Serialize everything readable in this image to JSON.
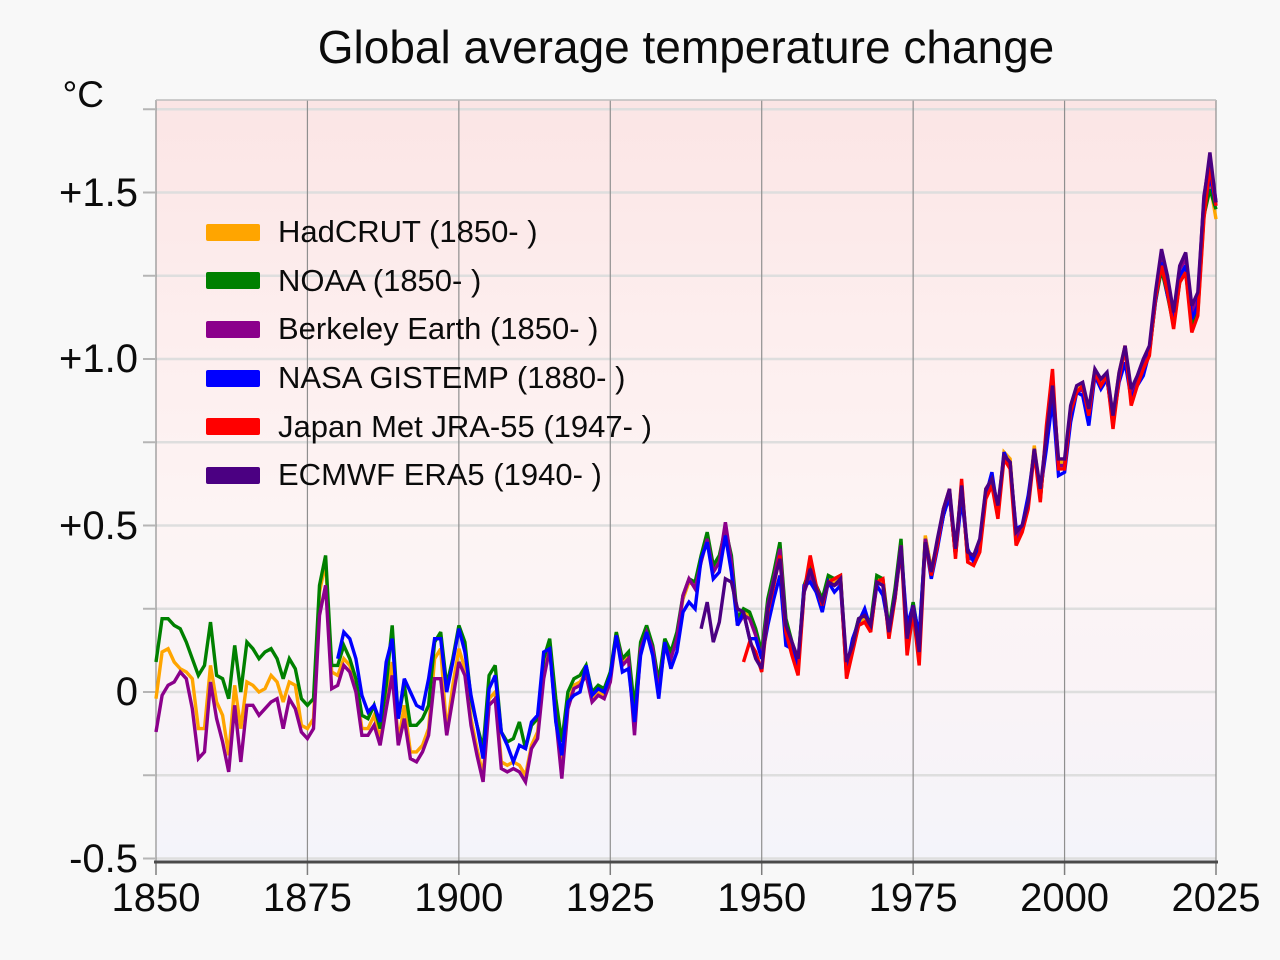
{
  "title": "Global average temperature change",
  "unit_label": "°C",
  "colors": {
    "page_bg": "#f8f8f8",
    "grid_horizontal": "#dedede",
    "grid_vertical": "#8f8f8f",
    "axis_bottom": "#4a4a4a",
    "tick_x": "#7d7d7d",
    "tick_y": "#b5b5b5",
    "border_top": "#bdbdbd",
    "text": "#0b0b0b",
    "plot_gradient": [
      "#fbe5e5",
      "#fdeeee",
      "#fdf4f4",
      "#f9f3f7",
      "#f4f4fa"
    ]
  },
  "chart_data": {
    "type": "line",
    "title": "Global average temperature change",
    "xlabel": "",
    "ylabel": "°C",
    "x_range": [
      1850,
      2025
    ],
    "y_range": [
      -0.5105,
      1.7778
    ],
    "grid": true,
    "legend_position": "upper-left-inside",
    "x_ticks": [
      1850,
      1875,
      1900,
      1925,
      1950,
      1975,
      2000,
      2025
    ],
    "y_ticks": [
      {
        "value": -0.5,
        "label": "-0.5"
      },
      {
        "value": 0,
        "label": "0"
      },
      {
        "value": 0.5,
        "label": "+0.5"
      },
      {
        "value": 1.0,
        "label": "+1.0"
      },
      {
        "value": 1.5,
        "label": "+1.5"
      }
    ],
    "y_minor_step": 0.25,
    "x_minor_step": 25,
    "series": [
      {
        "name": "hadcrut",
        "label": "HadCRUT (1850- )",
        "color": "#FFA500",
        "start_year": 1850,
        "values": [
          -0.02,
          0.12,
          0.13,
          0.09,
          0.07,
          0.06,
          0.04,
          -0.11,
          -0.11,
          0.08,
          -0.03,
          -0.07,
          -0.19,
          0.02,
          -0.11,
          0.03,
          0.02,
          0.0,
          0.01,
          0.05,
          0.03,
          -0.03,
          0.03,
          0.02,
          -0.1,
          -0.11,
          -0.08,
          0.3,
          0.39,
          0.06,
          0.05,
          0.1,
          0.08,
          0.02,
          -0.11,
          -0.11,
          -0.07,
          -0.14,
          -0.03,
          0.09,
          -0.15,
          -0.04,
          -0.18,
          -0.18,
          -0.16,
          -0.11,
          0.1,
          0.13,
          -0.12,
          0.02,
          0.13,
          0.07,
          -0.08,
          -0.17,
          -0.25,
          -0.02,
          0.0,
          -0.21,
          -0.22,
          -0.21,
          -0.22,
          -0.25,
          -0.16,
          -0.12,
          0.05,
          0.15,
          -0.06,
          -0.25,
          -0.04,
          0.02,
          0.03,
          0.06,
          -0.02,
          0.0,
          -0.01,
          0.04,
          0.18,
          0.09,
          0.11,
          -0.07,
          0.14,
          0.19,
          0.13,
          0.01,
          0.15,
          0.11,
          0.17,
          0.28,
          0.33,
          0.32,
          0.4,
          0.47,
          0.37,
          0.4,
          0.47,
          0.4,
          0.21,
          0.24,
          0.23,
          0.18,
          0.11,
          0.27,
          0.35,
          0.44,
          0.21,
          0.14,
          0.08,
          0.31,
          0.36,
          0.31,
          0.27,
          0.34,
          0.33,
          0.34,
          0.06,
          0.14,
          0.21,
          0.22,
          0.2,
          0.34,
          0.33,
          0.18,
          0.3,
          0.45,
          0.15,
          0.26,
          0.15,
          0.47,
          0.37,
          0.45,
          0.54,
          0.6,
          0.42,
          0.63,
          0.41,
          0.41,
          0.45,
          0.61,
          0.63,
          0.55,
          0.72,
          0.7,
          0.47,
          0.5,
          0.57,
          0.74,
          0.59,
          0.78,
          0.94,
          0.69,
          0.69,
          0.85,
          0.91,
          0.92,
          0.84,
          0.97,
          0.93,
          0.95,
          0.83,
          0.96,
          1.04,
          0.9,
          0.94,
          0.99,
          1.03,
          1.19,
          1.29,
          1.21,
          1.12,
          1.25,
          1.28,
          1.12,
          1.16,
          1.45,
          1.53,
          1.42
        ]
      },
      {
        "name": "noaa",
        "label": "NOAA (1850- )",
        "color": "#008000",
        "start_year": 1850,
        "values": [
          0.09,
          0.22,
          0.22,
          0.2,
          0.19,
          0.15,
          0.1,
          0.05,
          0.08,
          0.21,
          0.05,
          0.04,
          -0.02,
          0.14,
          0.0,
          0.15,
          0.13,
          0.1,
          0.12,
          0.13,
          0.1,
          0.04,
          0.1,
          0.07,
          -0.02,
          -0.04,
          -0.02,
          0.32,
          0.41,
          0.08,
          0.08,
          0.14,
          0.1,
          0.04,
          -0.07,
          -0.08,
          -0.04,
          -0.11,
          0.02,
          0.2,
          -0.08,
          0.02,
          -0.1,
          -0.1,
          -0.08,
          -0.04,
          0.15,
          0.18,
          0.02,
          0.1,
          0.2,
          0.15,
          -0.02,
          -0.1,
          -0.17,
          0.05,
          0.08,
          -0.12,
          -0.15,
          -0.14,
          -0.09,
          -0.17,
          -0.1,
          -0.08,
          0.1,
          0.16,
          -0.02,
          -0.15,
          0.0,
          0.04,
          0.05,
          0.08,
          0.0,
          0.02,
          0.01,
          0.06,
          0.18,
          0.1,
          0.12,
          -0.05,
          0.15,
          0.2,
          0.14,
          0.03,
          0.16,
          0.12,
          0.18,
          0.29,
          0.34,
          0.33,
          0.41,
          0.48,
          0.38,
          0.41,
          0.49,
          0.41,
          0.22,
          0.25,
          0.24,
          0.19,
          0.12,
          0.28,
          0.36,
          0.45,
          0.22,
          0.15,
          0.09,
          0.32,
          0.37,
          0.32,
          0.28,
          0.35,
          0.34,
          0.35,
          0.07,
          0.15,
          0.22,
          0.23,
          0.21,
          0.35,
          0.34,
          0.19,
          0.31,
          0.46,
          0.16,
          0.27,
          0.16,
          0.46,
          0.36,
          0.44,
          0.53,
          0.59,
          0.41,
          0.62,
          0.4,
          0.4,
          0.44,
          0.6,
          0.62,
          0.54,
          0.71,
          0.69,
          0.46,
          0.49,
          0.56,
          0.73,
          0.58,
          0.77,
          0.92,
          0.68,
          0.68,
          0.84,
          0.9,
          0.91,
          0.83,
          0.96,
          0.92,
          0.94,
          0.82,
          0.95,
          1.03,
          0.89,
          0.93,
          0.98,
          1.02,
          1.17,
          1.27,
          1.19,
          1.1,
          1.23,
          1.26,
          1.1,
          1.14,
          1.43,
          1.51,
          1.45
        ]
      },
      {
        "name": "berkeley-earth",
        "label": "Berkeley Earth (1850- )",
        "color": "#8B008B",
        "start_year": 1850,
        "values": [
          -0.12,
          -0.01,
          0.02,
          0.03,
          0.06,
          0.04,
          -0.05,
          -0.2,
          -0.18,
          0.03,
          -0.08,
          -0.15,
          -0.24,
          -0.04,
          -0.21,
          -0.04,
          -0.04,
          -0.07,
          -0.05,
          -0.03,
          -0.02,
          -0.11,
          -0.02,
          -0.05,
          -0.12,
          -0.14,
          -0.11,
          0.23,
          0.32,
          0.01,
          0.02,
          0.08,
          0.06,
          0.0,
          -0.13,
          -0.13,
          -0.1,
          -0.16,
          -0.05,
          0.05,
          -0.16,
          -0.08,
          -0.2,
          -0.21,
          -0.18,
          -0.13,
          0.04,
          0.04,
          -0.13,
          -0.02,
          0.09,
          0.05,
          -0.1,
          -0.19,
          -0.27,
          -0.04,
          -0.02,
          -0.23,
          -0.24,
          -0.23,
          -0.24,
          -0.27,
          -0.17,
          -0.14,
          0.04,
          0.13,
          -0.08,
          -0.26,
          -0.05,
          0.01,
          0.02,
          0.05,
          -0.03,
          -0.01,
          -0.02,
          0.03,
          0.17,
          0.08,
          0.1,
          -0.13,
          0.13,
          0.18,
          0.13,
          0.0,
          0.14,
          0.1,
          0.16,
          0.29,
          0.34,
          0.31,
          0.39,
          0.46,
          0.36,
          0.39,
          0.51,
          0.39,
          0.2,
          0.23,
          0.22,
          0.17,
          0.1,
          0.26,
          0.34,
          0.43,
          0.2,
          0.13,
          0.07,
          0.3,
          0.35,
          0.3,
          0.26,
          0.33,
          0.32,
          0.33,
          0.05,
          0.13,
          0.2,
          0.21,
          0.19,
          0.33,
          0.32,
          0.17,
          0.29,
          0.44,
          0.14,
          0.25,
          0.14,
          0.46,
          0.36,
          0.44,
          0.53,
          0.59,
          0.41,
          0.62,
          0.4,
          0.4,
          0.44,
          0.6,
          0.62,
          0.54,
          0.71,
          0.69,
          0.46,
          0.49,
          0.56,
          0.73,
          0.58,
          0.77,
          0.93,
          0.68,
          0.68,
          0.84,
          0.9,
          0.91,
          0.83,
          0.96,
          0.92,
          0.94,
          0.82,
          0.95,
          1.03,
          0.89,
          0.93,
          0.98,
          1.02,
          1.18,
          1.3,
          1.22,
          1.13,
          1.27,
          1.3,
          1.14,
          1.18,
          1.49,
          1.6,
          1.47
        ]
      },
      {
        "name": "nasa-gistemp",
        "label": "NASA GISTEMP (1880- )",
        "color": "#0000FF",
        "start_year": 1880,
        "values": [
          0.1,
          0.18,
          0.16,
          0.1,
          -0.01,
          -0.06,
          -0.04,
          -0.09,
          0.09,
          0.16,
          -0.08,
          0.04,
          0.0,
          -0.04,
          -0.05,
          0.04,
          0.16,
          0.16,
          0.0,
          0.09,
          0.19,
          0.12,
          -0.01,
          -0.1,
          -0.2,
          0.01,
          0.05,
          -0.12,
          -0.16,
          -0.21,
          -0.16,
          -0.17,
          -0.09,
          -0.07,
          0.12,
          0.13,
          -0.09,
          -0.19,
          -0.03,
          -0.01,
          0.0,
          0.08,
          -0.01,
          0.01,
          0.0,
          0.05,
          0.17,
          0.06,
          0.07,
          -0.09,
          0.11,
          0.18,
          0.11,
          -0.02,
          0.15,
          0.07,
          0.12,
          0.24,
          0.27,
          0.25,
          0.4,
          0.45,
          0.34,
          0.36,
          0.47,
          0.36,
          0.2,
          0.24,
          0.16,
          0.16,
          0.1,
          0.2,
          0.28,
          0.35,
          0.14,
          0.13,
          0.08,
          0.32,
          0.33,
          0.3,
          0.24,
          0.33,
          0.3,
          0.32,
          0.07,
          0.16,
          0.21,
          0.25,
          0.19,
          0.32,
          0.29,
          0.19,
          0.28,
          0.43,
          0.2,
          0.26,
          0.17,
          0.45,
          0.34,
          0.43,
          0.53,
          0.59,
          0.41,
          0.58,
          0.43,
          0.39,
          0.45,
          0.59,
          0.66,
          0.54,
          0.72,
          0.68,
          0.49,
          0.5,
          0.59,
          0.72,
          0.6,
          0.73,
          0.88,
          0.65,
          0.66,
          0.81,
          0.9,
          0.89,
          0.8,
          0.95,
          0.91,
          0.94,
          0.81,
          0.93,
          0.99,
          0.88,
          0.92,
          0.95,
          1.02,
          1.17,
          1.29,
          1.19,
          1.12,
          1.25,
          1.28,
          1.12,
          1.16,
          1.44,
          1.55,
          1.46
        ]
      },
      {
        "name": "japan-met-jra55",
        "label": "Japan Met JRA-55 (1947- )",
        "color": "#FF0000",
        "start_year": 1947,
        "values": [
          0.09,
          0.15,
          0.12,
          0.06,
          0.24,
          0.32,
          0.41,
          0.18,
          0.11,
          0.05,
          0.3,
          0.41,
          0.32,
          0.26,
          0.33,
          0.34,
          0.35,
          0.04,
          0.12,
          0.2,
          0.21,
          0.18,
          0.33,
          0.34,
          0.16,
          0.28,
          0.44,
          0.11,
          0.24,
          0.08,
          0.45,
          0.35,
          0.44,
          0.55,
          0.61,
          0.4,
          0.64,
          0.39,
          0.38,
          0.42,
          0.58,
          0.62,
          0.52,
          0.7,
          0.67,
          0.44,
          0.48,
          0.55,
          0.72,
          0.57,
          0.8,
          0.97,
          0.67,
          0.67,
          0.84,
          0.9,
          0.92,
          0.83,
          0.96,
          0.92,
          0.95,
          0.79,
          0.94,
          1.04,
          0.86,
          0.92,
          0.97,
          1.01,
          1.18,
          1.28,
          1.2,
          1.09,
          1.23,
          1.26,
          1.08,
          1.13,
          1.42,
          1.58,
          1.46
        ]
      },
      {
        "name": "ecmwf-era5",
        "label": "ECMWF ERA5 (1940- )",
        "color": "#4B0082",
        "start_year": 1940,
        "values": [
          0.19,
          0.27,
          0.15,
          0.21,
          0.34,
          0.33,
          0.25,
          0.24,
          0.16,
          0.1,
          0.07,
          0.25,
          0.33,
          0.4,
          0.2,
          0.15,
          0.1,
          0.3,
          0.37,
          0.31,
          0.27,
          0.33,
          0.32,
          0.34,
          0.09,
          0.14,
          0.22,
          0.23,
          0.2,
          0.33,
          0.32,
          0.18,
          0.29,
          0.44,
          0.16,
          0.26,
          0.12,
          0.45,
          0.36,
          0.46,
          0.55,
          0.61,
          0.43,
          0.62,
          0.42,
          0.41,
          0.46,
          0.61,
          0.64,
          0.56,
          0.71,
          0.69,
          0.48,
          0.5,
          0.57,
          0.73,
          0.61,
          0.77,
          0.92,
          0.7,
          0.7,
          0.86,
          0.92,
          0.93,
          0.85,
          0.97,
          0.94,
          0.96,
          0.83,
          0.96,
          1.04,
          0.91,
          0.95,
          1.0,
          1.04,
          1.2,
          1.33,
          1.25,
          1.14,
          1.28,
          1.32,
          1.16,
          1.2,
          1.48,
          1.62,
          1.47
        ]
      }
    ]
  }
}
